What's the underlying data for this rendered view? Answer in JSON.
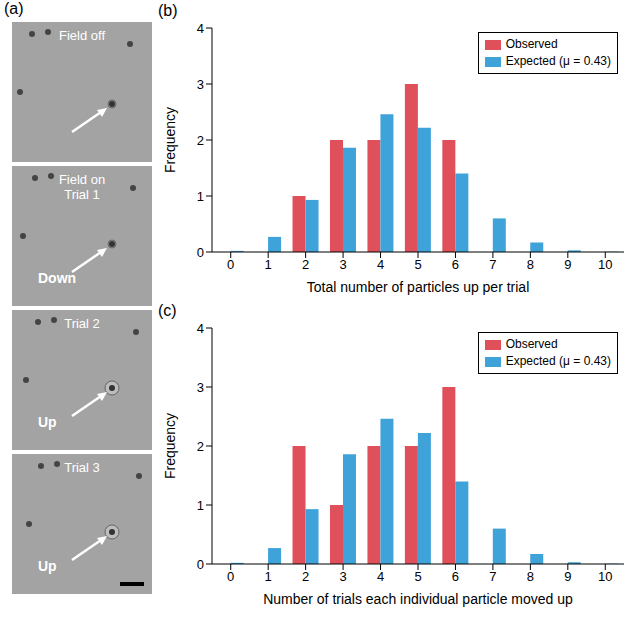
{
  "image_panel": {
    "panel": "(a)",
    "frames": [
      {
        "lines": [
          "Field off"
        ],
        "arrow_label": null
      },
      {
        "lines": [
          "Field on",
          "Trial 1"
        ],
        "arrow_label": "Down"
      },
      {
        "lines": [
          "Trial 2"
        ],
        "arrow_label": "Up"
      },
      {
        "lines": [
          "Trial 3"
        ],
        "arrow_label": "Up"
      }
    ]
  },
  "chart_data": [
    {
      "type": "bar",
      "panel": "(b)",
      "x_label": "Total number of particles up per trial",
      "y_label": "Frequency",
      "categories": [
        0,
        1,
        2,
        3,
        4,
        5,
        6,
        7,
        8,
        9,
        10
      ],
      "series": [
        {
          "name": "Observed",
          "color": "#e0505a",
          "values": [
            0,
            0,
            1,
            2,
            2,
            3,
            2,
            0,
            0,
            0,
            0
          ]
        },
        {
          "name": "Expected (μ = 0.43)",
          "color": "#3fa3d9",
          "values": [
            0.02,
            0.27,
            0.93,
            1.86,
            2.46,
            2.22,
            1.4,
            0.6,
            0.17,
            0.03,
            0.005
          ]
        }
      ],
      "ylim": [
        0,
        4
      ],
      "yticks": [
        0,
        1,
        2,
        3,
        4
      ],
      "grid": false,
      "legend": "upper right"
    },
    {
      "type": "bar",
      "panel": "(c)",
      "x_label": "Number of trials each individual particle moved up",
      "y_label": "Frequency",
      "categories": [
        0,
        1,
        2,
        3,
        4,
        5,
        6,
        7,
        8,
        9,
        10
      ],
      "series": [
        {
          "name": "Observed",
          "color": "#e0505a",
          "values": [
            0,
            0,
            2,
            1,
            2,
            2,
            3,
            0,
            0,
            0,
            0
          ]
        },
        {
          "name": "Expected (μ = 0.43)",
          "color": "#3fa3d9",
          "values": [
            0.02,
            0.27,
            0.93,
            1.86,
            2.46,
            2.22,
            1.4,
            0.6,
            0.17,
            0.03,
            0.005
          ]
        }
      ],
      "ylim": [
        0,
        4
      ],
      "yticks": [
        0,
        1,
        2,
        3,
        4
      ],
      "grid": false,
      "legend": "upper right"
    }
  ]
}
